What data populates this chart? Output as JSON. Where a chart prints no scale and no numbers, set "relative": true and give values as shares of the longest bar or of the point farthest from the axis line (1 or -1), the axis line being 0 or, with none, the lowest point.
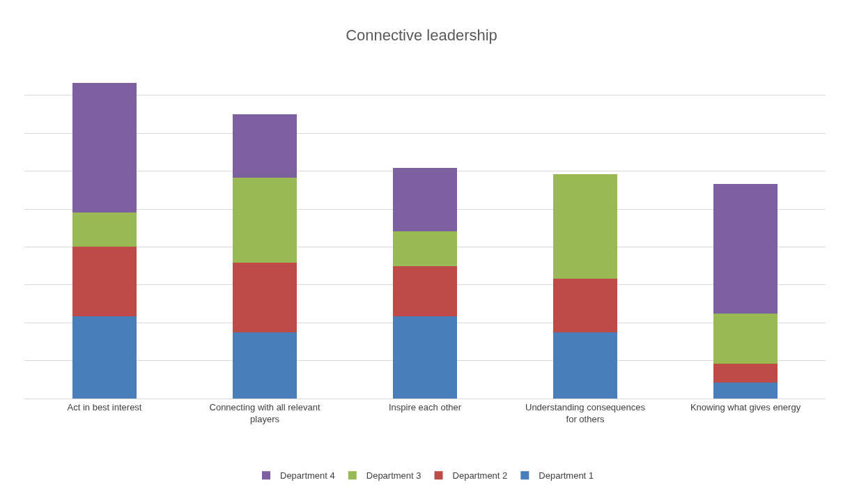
{
  "chart_data": {
    "type": "bar",
    "title": "Connective leadership",
    "stacked": true,
    "relative": true,
    "grid": "y",
    "legend": "bottom",
    "categories": [
      "Act in best interest",
      "Connecting with all relevant players",
      "Inspire each other",
      "Understanding consequences for others",
      "Knowing what gives energy"
    ],
    "series": [
      {
        "name": "Department 1",
        "color": "#4a7ebb",
        "values": [
          0.26,
          0.21,
          0.26,
          0.21,
          0.05
        ]
      },
      {
        "name": "Department 2",
        "color": "#be4b48",
        "values": [
          0.22,
          0.22,
          0.16,
          0.17,
          0.06
        ]
      },
      {
        "name": "Department 3",
        "color": "#98b954",
        "values": [
          0.11,
          0.27,
          0.11,
          0.33,
          0.16
        ]
      },
      {
        "name": "Department 4",
        "color": "#7d60a0",
        "values": [
          0.41,
          0.2,
          0.2,
          0,
          0.41
        ]
      }
    ]
  }
}
